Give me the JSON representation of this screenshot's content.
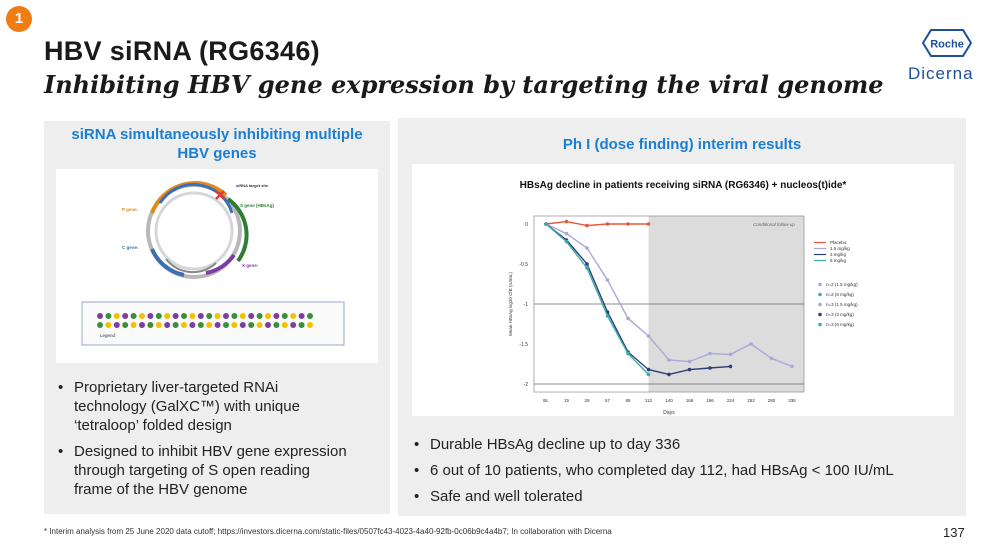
{
  "badge": "1",
  "title": "HBV siRNA (RG6346)",
  "subtitle": "Inhibiting HBV gene expression by targeting the viral genome",
  "logos": {
    "roche": "Roche",
    "dicerna": "Dicerna"
  },
  "left_panel": {
    "heading_line1": "siRNA simultaneously inhibiting multiple",
    "heading_line2": "HBV genes",
    "bullets": [
      [
        "Proprietary liver-targeted RNAi",
        "technology (GalXC™) with unique",
        "‘tetraloop’ folded design"
      ],
      [
        "Designed to inhibit HBV gene expression",
        "through targeting of S open reading",
        "frame of the HBV genome"
      ]
    ],
    "diagram": {
      "target_label": "siRNA target site",
      "s_gene": "S gene (HBsAg)",
      "p_gene": "P gene:",
      "c_gene": "C gene:",
      "x_gene": "X gene:",
      "legend": "Legend"
    }
  },
  "right_panel": {
    "heading": "Ph I (dose finding) interim results",
    "chart_title": "HBsAg decline in patients receiving siRNA (RG6346) + nucleos(t)ide*",
    "bullets": [
      "Durable HBsAg decline up to day 336",
      "6 out of 10 patients, who completed day 112, had HBsAg < 100 IU/mL",
      "Safe and well tolerated"
    ]
  },
  "chart_data": {
    "type": "line",
    "shaded_label": "Conditional follow-up",
    "xlabel": "Days",
    "ylabel": "Mean HBsAg log10 CfB (IU/mL)",
    "xticks": [
      "BL",
      "15",
      "29",
      "57",
      "85",
      "112",
      "140",
      "168",
      "196",
      "224",
      "252",
      "280",
      "336"
    ],
    "yticks": [
      "0",
      "-0.5",
      "-1",
      "-1.5",
      "-2"
    ],
    "ylim": [
      -2.1,
      0.1
    ],
    "legend_lines": [
      "Placebo",
      "1.5 mg/kg",
      "3 mg/kg",
      "6 mg/kg"
    ],
    "legend_markers": [
      "n=2 (1.5 mg/kg)",
      "n=2 (6 mg/kg)",
      "n=3 (1.5 mg/kg)",
      "n=3 (3 mg/kg)",
      "n=3 (6 mg/kg)"
    ],
    "series": [
      {
        "name": "Placebo",
        "color": "#e8553a",
        "x": [
          "BL",
          "15",
          "29",
          "57",
          "85",
          "112"
        ],
        "values": [
          0,
          0.03,
          -0.02,
          0,
          0,
          0
        ]
      },
      {
        "name": "1.5 mg/kg",
        "color": "#a9a8d8",
        "x": [
          "BL",
          "15",
          "29",
          "57",
          "85",
          "112",
          "140",
          "168",
          "196",
          "224",
          "252",
          "280",
          "336"
        ],
        "values": [
          0,
          -0.12,
          -0.3,
          -0.7,
          -1.18,
          -1.4,
          -1.7,
          -1.72,
          -1.62,
          -1.63,
          -1.5,
          -1.68,
          -1.78
        ]
      },
      {
        "name": "3 mg/kg",
        "color": "#2d3f7a",
        "x": [
          "BL",
          "15",
          "29",
          "57",
          "85",
          "112",
          "140",
          "168",
          "196",
          "224"
        ],
        "values": [
          0,
          -0.2,
          -0.5,
          -1.1,
          -1.6,
          -1.82,
          -1.88,
          -1.82,
          -1.8,
          -1.78
        ]
      },
      {
        "name": "6 mg/kg",
        "color": "#3aaea6",
        "x": [
          "BL",
          "15",
          "29",
          "57",
          "85",
          "112"
        ],
        "values": [
          0,
          -0.22,
          -0.55,
          -1.15,
          -1.62,
          -1.88
        ]
      }
    ]
  },
  "footnote": "* Interim analysis from 25 June 2020 data cutoff; https://investors.dicerna.com/static-files/0507fc43-4023-4a40-92fb-0c06b9c4a4b7; In collaboration with Dicerna",
  "page_number": "137"
}
